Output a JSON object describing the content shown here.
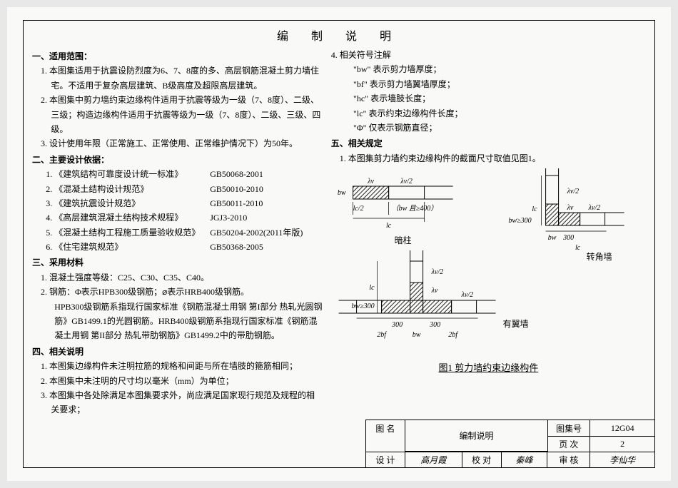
{
  "doc_title": "编 制 说 明",
  "sections": {
    "s1": {
      "head": "一、适用范围：",
      "l1": "1. 本图集适用于抗震设防烈度为6、7、8度的多、高层钢筋混凝土剪力墙住宅。不适用于复杂高层建筑、B级高度及超限高层建筑。",
      "l2": "2. 本图集中剪力墙约束边缘构件适用于抗震等级为一级（7、8度）、二级、三级；构造边缘构件适用于抗震等级为一级（7、8度）、二级、三级、四级。",
      "l3": "3. 设计使用年限（正常施工、正常使用、正常维护情况下）为50年。"
    },
    "s2": {
      "head": "二、主要设计依据：",
      "rows": [
        {
          "i": "1.",
          "n": "《建筑结构可靠度设计统一标准》",
          "c": "GB50068-2001"
        },
        {
          "i": "2.",
          "n": "《混凝土结构设计规范》",
          "c": "GB50010-2010"
        },
        {
          "i": "3.",
          "n": "《建筑抗震设计规范》",
          "c": "GB50011-2010"
        },
        {
          "i": "4.",
          "n": "《高层建筑混凝土结构技术规程》",
          "c": "JGJ3-2010"
        },
        {
          "i": "5.",
          "n": "《混凝土结构工程施工质量验收规范》",
          "c": "GB50204-2002(2011年版)"
        },
        {
          "i": "6.",
          "n": "《住宅建筑规范》",
          "c": "GB50368-2005"
        }
      ]
    },
    "s3": {
      "head": "三、采用材料",
      "l1": "1. 混凝土强度等级：C25、C30、C35、C40。",
      "l2": "2. 钢筋：Φ表示HPB300级钢筋；⌀表示HRB400级钢筋。",
      "l2b": "HPB300级钢筋系指现行国家标准《钢筋混凝土用钢 第I部分 热轧光圆钢筋》GB1499.1的光圆钢筋。HRB400级钢筋系指现行国家标准《钢筋混凝土用钢 第II部分 热轧带肋钢筋》GB1499.2中的带肋钢筋。"
    },
    "s4": {
      "head": "四、相关说明",
      "l1": "1. 本图集边缘构件未注明拉筋的规格和间距与所在墙肢的箍筋相同；",
      "l2": "2. 本图集中未注明的尺寸均以毫米（mm）为单位；",
      "l3": "3. 本图集中各处除满足本图集要求外，尚应满足国家现行规范及规程的相关要求；"
    },
    "s4r": {
      "head4": "4. 相关符号注解",
      "sym": [
        "\"bw\" 表示剪力墙厚度；",
        "\"bf\" 表示剪力墙翼墙厚度；",
        "\"hc\" 表示墙肢长度；",
        "\"lc\" 表示约束边缘构件长度；",
        "\"Φ\" 仅表示钢筋直径；"
      ]
    },
    "s5": {
      "head": "五、相关规定",
      "l1": "1. 本图集剪力墙约束边缘构件的截面尺寸取值见图1。"
    }
  },
  "figure": {
    "caption": "图1  剪力墙约束边缘构件",
    "labels": {
      "lam": "λv",
      "lam2": "λv/2",
      "lc": "lc",
      "lc2": "lc/2",
      "bw": "bw",
      "bf": "bf",
      "bw300": "bw≥300",
      "n300": "300",
      "n2bf": "2bf",
      "t1": "（bw 且≥400）",
      "anzhu": "暗柱",
      "youyi": "有翼墙",
      "zhuanjiao": "转角墙"
    },
    "colors": {
      "stroke": "#000000",
      "hatch": "#000000",
      "dim": "#000000"
    }
  },
  "titleblock": {
    "r1": {
      "c1": "图 名",
      "c2": "编制说明",
      "c3": "图集号",
      "c4": "12G04"
    },
    "r2": {
      "c3": "页 次",
      "c4": "2"
    },
    "r3": {
      "c1": "设 计",
      "c2": "高月霞",
      "c3": "校 对",
      "c4": "秦峰",
      "c5": "审 核",
      "c6": "李仙华"
    }
  }
}
